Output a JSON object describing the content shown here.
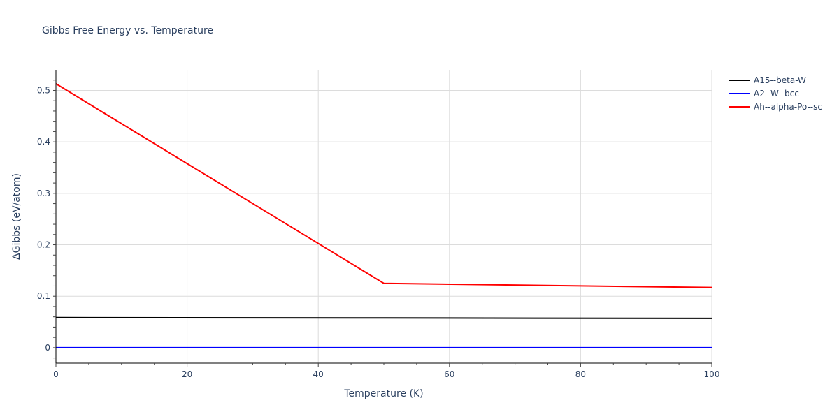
{
  "title": "Gibbs Free Energy vs. Temperature",
  "legend": [
    {
      "label": "A15--beta-W",
      "color": "#000000"
    },
    {
      "label": "A2--W--bcc",
      "color": "#0000ff"
    },
    {
      "label": "Ah--alpha-Po--sc",
      "color": "#ff0000"
    }
  ],
  "chart_data": {
    "type": "line",
    "title": "Gibbs Free Energy vs. Temperature",
    "xlabel": "Temperature (K)",
    "ylabel": "ΔGibbs (eV/atom)",
    "xlim": [
      0,
      100
    ],
    "ylim": [
      -0.03,
      0.54
    ],
    "xticks": [
      0,
      20,
      40,
      60,
      80,
      100
    ],
    "yticks": [
      0,
      0.1,
      0.2,
      0.3,
      0.4,
      0.5
    ],
    "xtick_labels": [
      "0",
      "20",
      "40",
      "60",
      "80",
      "100"
    ],
    "ytick_labels": [
      "0",
      "0.1",
      "0.2",
      "0.3",
      "0.4",
      "0.5"
    ],
    "grid": true,
    "legend_position": "right-top",
    "series": [
      {
        "name": "A15--beta-W",
        "color": "#000000",
        "x": [
          0,
          50,
          100
        ],
        "y": [
          0.0585,
          0.0578,
          0.057
        ]
      },
      {
        "name": "A2--W--bcc",
        "color": "#0000ff",
        "x": [
          0,
          50,
          100
        ],
        "y": [
          0,
          0,
          0
        ]
      },
      {
        "name": "Ah--alpha-Po--sc",
        "color": "#ff0000",
        "x": [
          0,
          50,
          100
        ],
        "y": [
          0.513,
          0.125,
          0.117
        ]
      }
    ]
  }
}
